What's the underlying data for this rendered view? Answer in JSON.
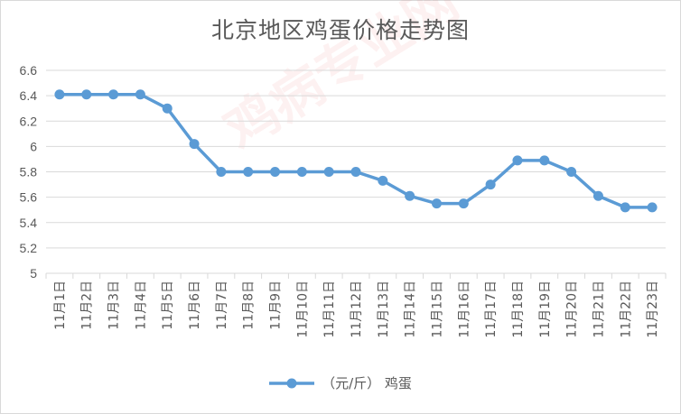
{
  "chart_data": {
    "type": "line",
    "title": "北京地区鸡蛋价格走势图",
    "categories": [
      "11月1日",
      "11月2日",
      "11月3日",
      "11月4日",
      "11月5日",
      "11月6日",
      "11月7日",
      "11月8日",
      "11月9日",
      "11月10日",
      "11月11日",
      "11月12日",
      "11月13日",
      "11月14日",
      "11月15日",
      "11月16日",
      "11月17日",
      "11月18日",
      "11月19日",
      "11月20日",
      "11月21日",
      "11月22日",
      "11月23日"
    ],
    "series": [
      {
        "name": "（元/斤） 鸡蛋",
        "values": [
          6.41,
          6.41,
          6.41,
          6.41,
          6.3,
          6.02,
          5.8,
          5.8,
          5.8,
          5.8,
          5.8,
          5.8,
          5.73,
          5.61,
          5.55,
          5.55,
          5.7,
          5.89,
          5.89,
          5.8,
          5.61,
          5.52,
          5.52
        ],
        "color": "#5b9bd5"
      }
    ],
    "ylim": [
      5,
      6.6
    ],
    "yticks": [
      "5",
      "5.2",
      "5.4",
      "5.6",
      "5.8",
      "6",
      "6.2",
      "6.4",
      "6.6"
    ],
    "grid": true,
    "legend_position": "bottom"
  },
  "watermark": "鸡病专业网"
}
